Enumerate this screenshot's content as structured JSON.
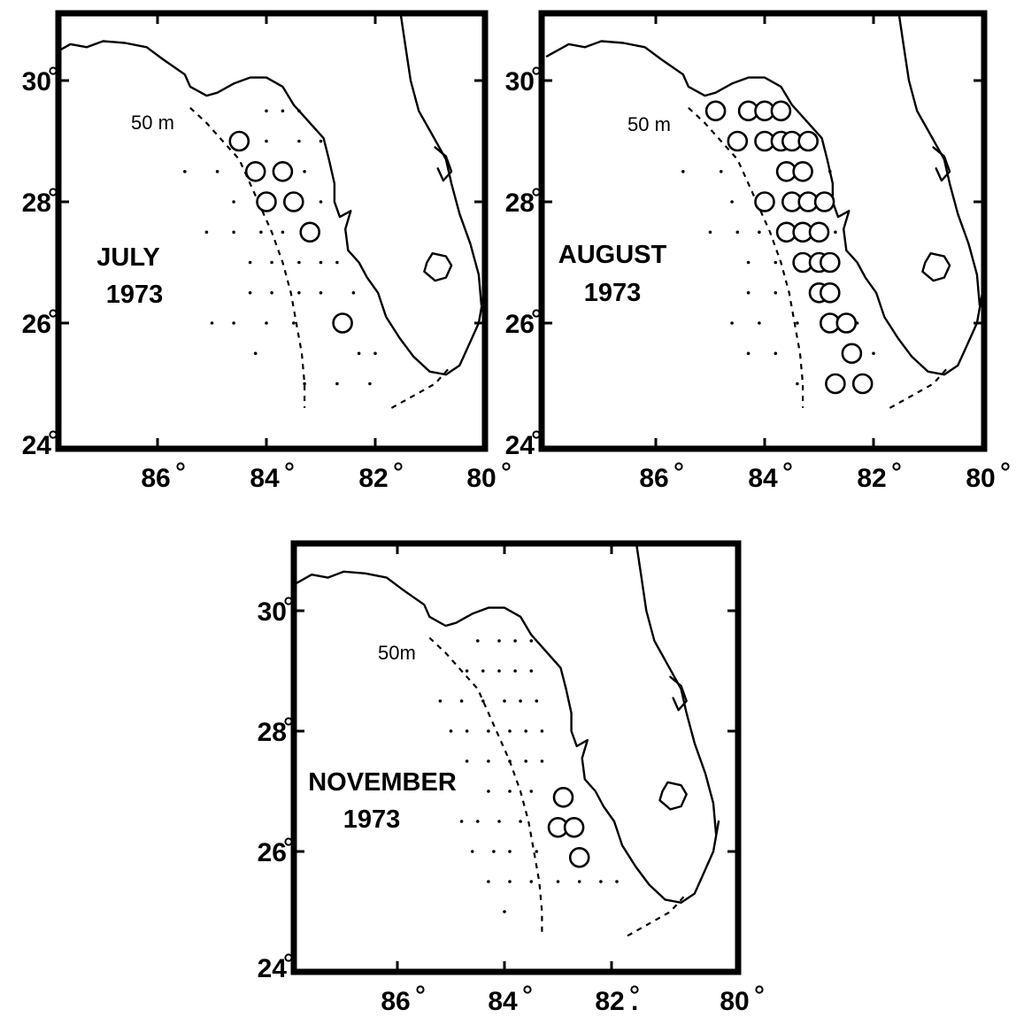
{
  "figure": {
    "panels": [
      {
        "id": "july",
        "title": "JULY",
        "year": "1973",
        "contour_label": "50 m",
        "lat_labels": [
          "30",
          "28",
          "26",
          "24"
        ],
        "lon_labels": [
          "86",
          "84",
          "82",
          "80"
        ],
        "occurrences": [
          [
            -84.5,
            29.0
          ],
          [
            -84.2,
            28.5
          ],
          [
            -83.7,
            28.5
          ],
          [
            -84.0,
            28.0
          ],
          [
            -83.5,
            28.0
          ],
          [
            -83.2,
            27.5
          ],
          [
            -82.6,
            26.0
          ]
        ],
        "stations": [
          [
            -84.0,
            29.5
          ],
          [
            -83.7,
            29.5
          ],
          [
            -83.4,
            29.5
          ],
          [
            -84.0,
            29.0
          ],
          [
            -83.4,
            29.0
          ],
          [
            -83.0,
            29.0
          ],
          [
            -85.5,
            28.5
          ],
          [
            -84.9,
            28.5
          ],
          [
            -83.3,
            28.5
          ],
          [
            -84.6,
            28.0
          ],
          [
            -83.0,
            28.0
          ],
          [
            -85.1,
            27.5
          ],
          [
            -84.6,
            27.5
          ],
          [
            -84.1,
            27.5
          ],
          [
            -83.7,
            27.5
          ],
          [
            -84.3,
            27.0
          ],
          [
            -83.9,
            27.0
          ],
          [
            -83.4,
            27.0
          ],
          [
            -83.0,
            27.0
          ],
          [
            -82.7,
            27.0
          ],
          [
            -84.3,
            26.5
          ],
          [
            -83.9,
            26.5
          ],
          [
            -83.4,
            26.5
          ],
          [
            -83.0,
            26.5
          ],
          [
            -82.4,
            26.5
          ],
          [
            -85.0,
            26.0
          ],
          [
            -84.6,
            26.0
          ],
          [
            -84.0,
            26.0
          ],
          [
            -83.5,
            26.0
          ],
          [
            -84.2,
            25.5
          ],
          [
            -82.3,
            25.5
          ],
          [
            -82.0,
            25.5
          ],
          [
            -83.3,
            25.0
          ],
          [
            -82.7,
            25.0
          ],
          [
            -82.1,
            25.0
          ]
        ]
      },
      {
        "id": "august",
        "title": "AUGUST",
        "year": "1973",
        "contour_label": "50 m",
        "lat_labels": [
          "30",
          "28",
          "26",
          "24"
        ],
        "lon_labels": [
          "86",
          "84",
          "82",
          "80"
        ],
        "occurrences": [
          [
            -84.9,
            29.5
          ],
          [
            -84.3,
            29.5
          ],
          [
            -84.0,
            29.5
          ],
          [
            -83.7,
            29.5
          ],
          [
            -84.5,
            29.0
          ],
          [
            -84.0,
            29.0
          ],
          [
            -83.7,
            29.0
          ],
          [
            -83.5,
            29.0
          ],
          [
            -83.2,
            29.0
          ],
          [
            -83.6,
            28.5
          ],
          [
            -83.3,
            28.5
          ],
          [
            -84.0,
            28.0
          ],
          [
            -83.5,
            28.0
          ],
          [
            -83.2,
            28.0
          ],
          [
            -82.9,
            28.0
          ],
          [
            -83.6,
            27.5
          ],
          [
            -83.3,
            27.5
          ],
          [
            -83.0,
            27.5
          ],
          [
            -83.3,
            27.0
          ],
          [
            -83.0,
            27.0
          ],
          [
            -82.8,
            27.0
          ],
          [
            -83.0,
            26.5
          ],
          [
            -82.8,
            26.5
          ],
          [
            -82.8,
            26.0
          ],
          [
            -82.5,
            26.0
          ],
          [
            -82.4,
            25.5
          ],
          [
            -82.7,
            25.0
          ],
          [
            -82.2,
            25.0
          ]
        ],
        "stations": [
          [
            -85.5,
            28.5
          ],
          [
            -84.8,
            28.5
          ],
          [
            -82.8,
            28.5
          ],
          [
            -84.6,
            28.0
          ],
          [
            -85.0,
            27.5
          ],
          [
            -84.5,
            27.5
          ],
          [
            -84.1,
            27.5
          ],
          [
            -82.7,
            27.5
          ],
          [
            -84.3,
            27.0
          ],
          [
            -83.8,
            27.0
          ],
          [
            -84.3,
            26.5
          ],
          [
            -83.8,
            26.5
          ],
          [
            -84.6,
            26.0
          ],
          [
            -84.1,
            26.0
          ],
          [
            -83.4,
            26.0
          ],
          [
            -82.3,
            26.0
          ],
          [
            -84.3,
            25.5
          ],
          [
            -83.8,
            25.5
          ],
          [
            -82.0,
            25.5
          ],
          [
            -83.4,
            25.0
          ]
        ]
      },
      {
        "id": "november",
        "title": "NOVEMBER",
        "year": "1973",
        "contour_label": "50m",
        "lat_labels": [
          "30",
          "28",
          "26",
          "24"
        ],
        "lon_labels": [
          "86",
          "84",
          "82",
          "80"
        ],
        "lon_82_suffix": ".",
        "occurrences": [
          [
            -82.9,
            26.9
          ],
          [
            -83.0,
            26.4
          ],
          [
            -82.7,
            26.4
          ],
          [
            -82.6,
            25.9
          ]
        ],
        "stations": [
          [
            -84.5,
            29.5
          ],
          [
            -84.1,
            29.5
          ],
          [
            -83.8,
            29.5
          ],
          [
            -83.5,
            29.5
          ],
          [
            -84.7,
            29.0
          ],
          [
            -84.4,
            29.0
          ],
          [
            -84.1,
            29.0
          ],
          [
            -83.8,
            29.0
          ],
          [
            -83.5,
            29.0
          ],
          [
            -85.2,
            28.5
          ],
          [
            -84.8,
            28.5
          ],
          [
            -84.4,
            28.5
          ],
          [
            -84.0,
            28.5
          ],
          [
            -83.7,
            28.5
          ],
          [
            -83.4,
            28.5
          ],
          [
            -85.0,
            28.0
          ],
          [
            -84.7,
            28.0
          ],
          [
            -84.3,
            28.0
          ],
          [
            -83.9,
            28.0
          ],
          [
            -83.6,
            28.0
          ],
          [
            -83.3,
            28.0
          ],
          [
            -84.7,
            27.5
          ],
          [
            -84.3,
            27.5
          ],
          [
            -83.9,
            27.5
          ],
          [
            -83.6,
            27.5
          ],
          [
            -83.3,
            27.5
          ],
          [
            -84.3,
            27.0
          ],
          [
            -83.9,
            27.0
          ],
          [
            -83.5,
            27.0
          ],
          [
            -84.8,
            26.5
          ],
          [
            -84.5,
            26.5
          ],
          [
            -84.1,
            26.5
          ],
          [
            -83.7,
            26.5
          ],
          [
            -84.6,
            26.0
          ],
          [
            -84.2,
            26.0
          ],
          [
            -83.9,
            26.0
          ],
          [
            -83.4,
            26.0
          ],
          [
            -84.3,
            25.5
          ],
          [
            -83.9,
            25.5
          ],
          [
            -83.5,
            25.5
          ],
          [
            -83.0,
            25.5
          ],
          [
            -82.6,
            25.5
          ],
          [
            -82.2,
            25.5
          ],
          [
            -81.9,
            25.5
          ],
          [
            -84.0,
            25.0
          ]
        ]
      }
    ]
  }
}
